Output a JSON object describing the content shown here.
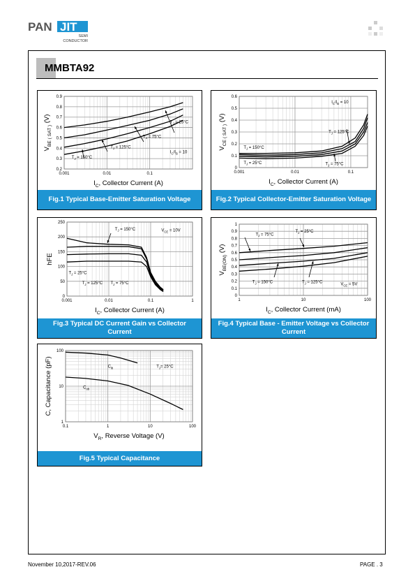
{
  "brand": {
    "logo_text_left": "PAN",
    "logo_text_right": "JIT",
    "sub_line1": "SEMI",
    "sub_line2": "CONDUCTOR"
  },
  "part_number": "MMBTA92",
  "footer": {
    "date": "November 10,2017-REV.06",
    "page": "PAGE . 3"
  },
  "colors": {
    "caption_bg": "#1e95d3",
    "logo_accent": "#1e95d3"
  },
  "chart_data": [
    {
      "id": "fig1",
      "type": "line",
      "caption": "Fig.1 Typical Base-Emitter Saturation Voltage",
      "xlabel_main": "I",
      "xlabel_sub": "C",
      "xlabel_rest": ", Collector Current (A)",
      "ylabel_main": "V",
      "ylabel_sub": "BE ( SAT )",
      "ylabel_rest": "(V)",
      "xscale": "log",
      "xlim": [
        0.001,
        1
      ],
      "ylim": [
        0.2,
        0.9
      ],
      "xticks": [
        "0.001",
        "0.01",
        "0.1"
      ],
      "xtick_values": [
        0.001,
        0.01,
        0.1
      ],
      "yticks": [
        "0.2",
        "0.3",
        "0.4",
        "0.5",
        "0.6",
        "0.7",
        "0.8",
        "0.9"
      ],
      "ytick_values": [
        0.2,
        0.3,
        0.4,
        0.5,
        0.6,
        0.7,
        0.8,
        0.9
      ],
      "series": [
        {
          "x": [
            0.001,
            0.003,
            0.01,
            0.03,
            0.1,
            0.3,
            0.6
          ],
          "y": [
            0.6,
            0.625,
            0.66,
            0.7,
            0.75,
            0.8,
            0.84
          ]
        },
        {
          "x": [
            0.001,
            0.003,
            0.01,
            0.03,
            0.1,
            0.3,
            0.6
          ],
          "y": [
            0.5,
            0.53,
            0.575,
            0.62,
            0.67,
            0.73,
            0.78
          ]
        },
        {
          "x": [
            0.001,
            0.003,
            0.01,
            0.03,
            0.1,
            0.3,
            0.6
          ],
          "y": [
            0.41,
            0.445,
            0.49,
            0.54,
            0.6,
            0.66,
            0.72
          ]
        },
        {
          "x": [
            0.001,
            0.003,
            0.01,
            0.03,
            0.1,
            0.3,
            0.6
          ],
          "y": [
            0.34,
            0.375,
            0.42,
            0.47,
            0.54,
            0.61,
            0.67
          ]
        }
      ],
      "annotations": [
        {
          "text": "T",
          "sub": "J",
          "rest": " = 25°C",
          "x": 0.3,
          "y": 0.64
        },
        {
          "text": "T",
          "sub": "J",
          "rest": " = 75°C",
          "x": 0.07,
          "y": 0.5
        },
        {
          "text": "T",
          "sub": "J",
          "rest": " = 125°C",
          "x": 0.012,
          "y": 0.4
        },
        {
          "text": "T",
          "sub": "J",
          "rest": " = 150°C",
          "x": 0.0015,
          "y": 0.3
        },
        {
          "text": "I",
          "sub": "C",
          "rest": "/I",
          "sub2": "B",
          "rest2": " = 10",
          "x": 0.3,
          "y": 0.35
        }
      ]
    },
    {
      "id": "fig2",
      "type": "line",
      "caption": "Fig.2  Typical Collector-Emitter Saturation Voltage",
      "xlabel_main": "I",
      "xlabel_sub": "C",
      "xlabel_rest": ", Collector Current (A)",
      "ylabel_main": "V",
      "ylabel_sub": "CE ( SAT )",
      "ylabel_rest": "(V)",
      "xscale": "log",
      "xlim": [
        0.001,
        0.2
      ],
      "ylim": [
        0,
        0.6
      ],
      "xticks": [
        "0.001",
        "0.01",
        "0.1"
      ],
      "xtick_values": [
        0.001,
        0.01,
        0.1
      ],
      "yticks": [
        "0",
        "0.1",
        "0.2",
        "0.3",
        "0.4",
        "0.5",
        "0.6"
      ],
      "ytick_values": [
        0,
        0.1,
        0.2,
        0.3,
        0.4,
        0.5,
        0.6
      ],
      "series": [
        {
          "x": [
            0.001,
            0.003,
            0.01,
            0.03,
            0.07,
            0.12,
            0.17,
            0.2
          ],
          "y": [
            0.12,
            0.12,
            0.125,
            0.14,
            0.18,
            0.25,
            0.36,
            0.45
          ]
        },
        {
          "x": [
            0.001,
            0.003,
            0.01,
            0.03,
            0.07,
            0.12,
            0.17,
            0.2
          ],
          "y": [
            0.11,
            0.105,
            0.11,
            0.125,
            0.16,
            0.22,
            0.33,
            0.42
          ]
        },
        {
          "x": [
            0.001,
            0.003,
            0.01,
            0.03,
            0.07,
            0.12,
            0.17,
            0.2
          ],
          "y": [
            0.095,
            0.09,
            0.095,
            0.11,
            0.14,
            0.2,
            0.3,
            0.38
          ]
        },
        {
          "x": [
            0.001,
            0.003,
            0.01,
            0.03,
            0.07,
            0.12,
            0.17,
            0.2
          ],
          "y": [
            0.08,
            0.075,
            0.08,
            0.095,
            0.12,
            0.18,
            0.27,
            0.35
          ]
        }
      ],
      "annotations": [
        {
          "text": "I",
          "sub": "C",
          "rest": "/I",
          "sub2": "B",
          "rest2": " = 10",
          "x": 0.045,
          "y": 0.54
        },
        {
          "text": "T",
          "sub": "J",
          "rest": " = 125°C",
          "x": 0.04,
          "y": 0.29
        },
        {
          "text": "T",
          "sub": "J",
          "rest": " = 150°C",
          "x": 0.0012,
          "y": 0.16
        },
        {
          "text": "T",
          "sub": "J",
          "rest": " = 25°C",
          "x": 0.0012,
          "y": 0.03
        },
        {
          "text": "T",
          "sub": "J",
          "rest": " = 75°C",
          "x": 0.035,
          "y": 0.02
        }
      ]
    },
    {
      "id": "fig3",
      "type": "line",
      "caption": "Fig.3  Typical DC Current Gain vs Collector Current",
      "xlabel_main": "I",
      "xlabel_sub": "C",
      "xlabel_rest": ", Collector Current (A)",
      "ylabel_main": "hFE",
      "ylabel_sub": "",
      "ylabel_rest": "",
      "xscale": "log",
      "xlim": [
        0.001,
        1
      ],
      "ylim": [
        0,
        250
      ],
      "xticks": [
        "0.001",
        "0.01",
        "0.1",
        "1"
      ],
      "xtick_values": [
        0.001,
        0.01,
        0.1,
        1
      ],
      "yticks": [
        "0",
        "50",
        "100",
        "150",
        "200",
        "250"
      ],
      "ytick_values": [
        0,
        50,
        100,
        150,
        200,
        250
      ],
      "series": [
        {
          "x": [
            0.001,
            0.003,
            0.01,
            0.03,
            0.06,
            0.08,
            0.1,
            0.13,
            0.17,
            0.2
          ],
          "y": [
            195,
            180,
            175,
            173,
            165,
            130,
            80,
            50,
            30,
            22
          ]
        },
        {
          "x": [
            0.001,
            0.003,
            0.01,
            0.03,
            0.06,
            0.08,
            0.1,
            0.13,
            0.17,
            0.2
          ],
          "y": [
            165,
            168,
            168,
            167,
            160,
            125,
            75,
            45,
            28,
            20
          ]
        },
        {
          "x": [
            0.001,
            0.003,
            0.01,
            0.03,
            0.06,
            0.08,
            0.1,
            0.13,
            0.17,
            0.2
          ],
          "y": [
            140,
            142,
            143,
            143,
            138,
            115,
            70,
            42,
            25,
            18
          ]
        },
        {
          "x": [
            0.001,
            0.003,
            0.01,
            0.03,
            0.06,
            0.08,
            0.1,
            0.13,
            0.17,
            0.2
          ],
          "y": [
            115,
            118,
            118,
            118,
            115,
            100,
            65,
            38,
            22,
            15
          ]
        }
      ],
      "annotations": [
        {
          "text": "T",
          "sub": "J",
          "rest": " = 150°C",
          "x": 0.014,
          "y": 222
        },
        {
          "text": "V",
          "sub": "CE",
          "rest": " = 10V",
          "x": 0.18,
          "y": 218
        },
        {
          "text": "T",
          "sub": "J",
          "rest": " = 25°C",
          "x": 0.0011,
          "y": 74
        },
        {
          "text": "T",
          "sub": "J",
          "rest": " = 125°C",
          "x": 0.0023,
          "y": 40
        },
        {
          "text": "T",
          "sub": "J",
          "rest": " = 75°C",
          "x": 0.011,
          "y": 40
        }
      ]
    },
    {
      "id": "fig4",
      "type": "line",
      "caption": "Fig.4  Typical Base - Emitter Voltage vs Collector Current",
      "xlabel_main": "I",
      "xlabel_sub": "C",
      "xlabel_rest": ", Collector Current (mA)",
      "ylabel_main": "V",
      "ylabel_sub": "BE(ON)",
      "ylabel_rest": "(V)",
      "xscale": "log",
      "xlim": [
        1,
        100
      ],
      "ylim": [
        0,
        1
      ],
      "xticks": [
        "1",
        "10",
        "100"
      ],
      "xtick_values": [
        1,
        10,
        100
      ],
      "yticks": [
        "0",
        "0.1",
        "0.2",
        "0.3",
        "0.4",
        "0.5",
        "0.6",
        "0.7",
        "0.8",
        "0.9",
        "1"
      ],
      "ytick_values": [
        0,
        0.1,
        0.2,
        0.3,
        0.4,
        0.5,
        0.6,
        0.7,
        0.8,
        0.9,
        1
      ],
      "series": [
        {
          "x": [
            1,
            3,
            10,
            30,
            100
          ],
          "y": [
            0.6,
            0.63,
            0.66,
            0.69,
            0.74
          ]
        },
        {
          "x": [
            1,
            3,
            10,
            30,
            100
          ],
          "y": [
            0.5,
            0.53,
            0.56,
            0.6,
            0.67
          ]
        },
        {
          "x": [
            1,
            3,
            10,
            30,
            100
          ],
          "y": [
            0.42,
            0.45,
            0.48,
            0.52,
            0.6
          ]
        },
        {
          "x": [
            1,
            3,
            10,
            30,
            100
          ],
          "y": [
            0.34,
            0.37,
            0.41,
            0.46,
            0.55
          ]
        }
      ],
      "annotations": [
        {
          "text": "T",
          "sub": "J",
          "rest": " = 75°C",
          "x": 1.8,
          "y": 0.84
        },
        {
          "text": "T",
          "sub": "J",
          "rest": " = 25°C",
          "x": 7.5,
          "y": 0.88
        },
        {
          "text": "T",
          "sub": "J",
          "rest": " = 150°C",
          "x": 1.6,
          "y": 0.17
        },
        {
          "text": "T",
          "sub": "J",
          "rest": " = 125°C",
          "x": 9.5,
          "y": 0.17
        },
        {
          "text": "V",
          "sub": "CE",
          "rest": " = 5V",
          "x": 38,
          "y": 0.14
        }
      ]
    },
    {
      "id": "fig5",
      "type": "line",
      "caption": "Fig.5  Typical Capacitance",
      "xlabel_main": "V",
      "xlabel_sub": "R",
      "xlabel_rest": ", Reverse Voltage (V)",
      "ylabel_main": "C, Capacitance",
      "ylabel_sub": "",
      "ylabel_rest": "(pF)",
      "xscale": "log",
      "yscale": "log",
      "xlim": [
        0.1,
        100
      ],
      "ylim": [
        1,
        100
      ],
      "xticks": [
        "0.1",
        "1",
        "10",
        "100"
      ],
      "xtick_values": [
        0.1,
        1,
        10,
        100
      ],
      "yticks": [
        "1",
        "10",
        "100"
      ],
      "ytick_values": [
        1,
        10,
        100
      ],
      "series": [
        {
          "x": [
            0.1,
            0.3,
            1,
            2,
            5
          ],
          "y": [
            90,
            85,
            75,
            62,
            45
          ]
        },
        {
          "x": [
            0.1,
            0.3,
            1,
            3,
            10,
            30,
            60
          ],
          "y": [
            18,
            16.5,
            14,
            10.5,
            6,
            3.3,
            2.2
          ]
        }
      ],
      "annotations": [
        {
          "text": "C",
          "sub": "ib",
          "rest": "",
          "x": 1.0,
          "y": 33
        },
        {
          "text": "C",
          "sub": "ob",
          "rest": "",
          "x": 0.26,
          "y": 8.5
        },
        {
          "text": "T",
          "sub": "J",
          "rest": "= 25°C",
          "x": 14,
          "y": 33
        }
      ]
    }
  ]
}
